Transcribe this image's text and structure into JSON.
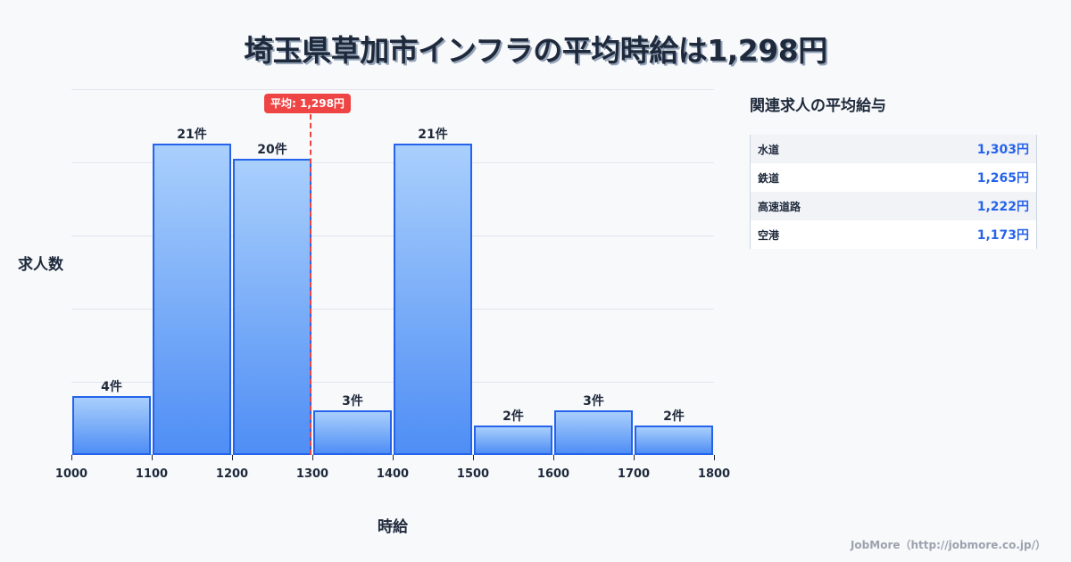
{
  "title": "埼玉県草加市インフラの平均時給は1,298円",
  "chart_data": {
    "type": "bar",
    "title": "埼玉県草加市インフラの平均時給は1,298円",
    "xlabel": "時給",
    "ylabel": "求人数",
    "bins": [
      [
        1000,
        1100
      ],
      [
        1100,
        1200
      ],
      [
        1200,
        1300
      ],
      [
        1300,
        1400
      ],
      [
        1400,
        1500
      ],
      [
        1500,
        1600
      ],
      [
        1600,
        1700
      ],
      [
        1700,
        1800
      ]
    ],
    "categories": [
      "1000-1100",
      "1100-1200",
      "1200-1300",
      "1300-1400",
      "1400-1500",
      "1500-1600",
      "1600-1700",
      "1700-1800"
    ],
    "values": [
      4,
      21,
      20,
      3,
      21,
      2,
      3,
      2
    ],
    "value_labels": [
      "4件",
      "21件",
      "20件",
      "3件",
      "21件",
      "2件",
      "3件",
      "2件"
    ],
    "x_ticks": [
      "1000",
      "1100",
      "1200",
      "1300",
      "1400",
      "1500",
      "1600",
      "1700",
      "1800"
    ],
    "xlim": [
      1000,
      1800
    ],
    "ylim": [
      0,
      24.7
    ],
    "grid": true,
    "annotations": [
      {
        "type": "vline",
        "x": 1298,
        "label": "平均: 1,298円",
        "color": "#ef4444",
        "style": "dashed"
      }
    ],
    "bar_color": "#4f8ef5",
    "bar_edge_color": "#2563eb"
  },
  "mean_badge": "平均: 1,298円",
  "side_panel": {
    "title": "関連求人の平均給与",
    "rows": [
      {
        "name": "水道",
        "value": "1,303円"
      },
      {
        "name": "鉄道",
        "value": "1,265円"
      },
      {
        "name": "高速道路",
        "value": "1,222円"
      },
      {
        "name": "空港",
        "value": "1,173円"
      }
    ]
  },
  "footer": "JobMore（http://jobmore.co.jp/）"
}
